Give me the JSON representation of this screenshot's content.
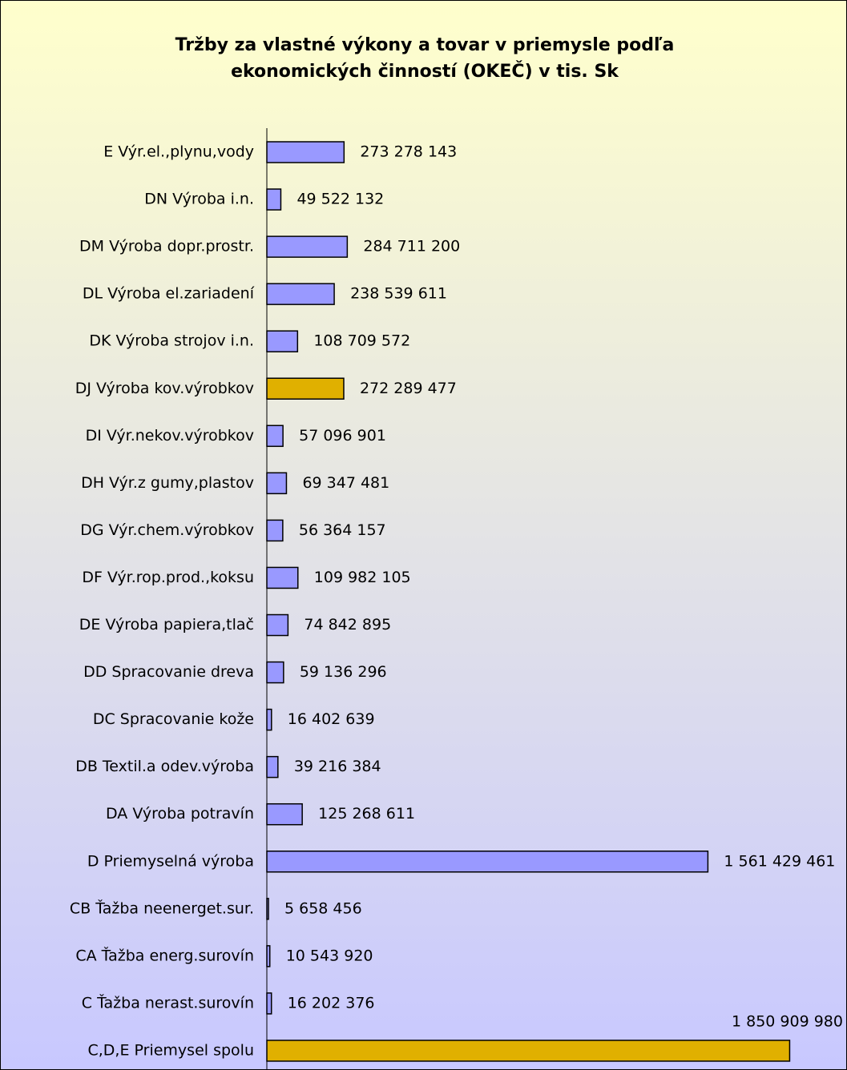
{
  "chart_data": {
    "type": "barh",
    "title": [
      "Tržby za vlastné výkony a tovar v priemysle podľa",
      "ekonomických činností (OKEČ) v tis. Sk"
    ],
    "categories": [
      "E Výr.el.,plynu,vody",
      "DN Výroba i.n.",
      "DM Výroba dopr.prostr.",
      "DL Výroba el.zariadení",
      "DK Výroba strojov i.n.",
      "DJ Výroba kov.výrobkov",
      "DI Výr.nekov.výrobkov",
      "DH Výr.z gumy,plastov",
      "DG Výr.chem.výrobkov",
      "DF Výr.rop.prod.,koksu",
      "DE Výroba papiera,tlač",
      "DD Spracovanie dreva",
      "DC Spracovanie kože",
      "DB Textil.a odev.výroba",
      "DA Výroba potravín",
      "D Priemyselná výroba",
      "CB Ťažba neenerget.sur.",
      "CA Ťažba energ.surovín",
      "C Ťažba nerast.surovín",
      "C,D,E Priemysel spolu"
    ],
    "values": [
      273278143,
      49522132,
      284711200,
      238539611,
      108709572,
      272289477,
      57096901,
      69347481,
      56364157,
      109982105,
      74842895,
      59136296,
      16402639,
      39216384,
      125268611,
      1561429461,
      5658456,
      10543920,
      16202376,
      1850909980
    ],
    "value_labels": [
      "273 278 143",
      "49 522 132",
      "284 711 200",
      "238 539 611",
      "108 709 572",
      "272 289 477",
      "57 096 901",
      "69 347 481",
      "56 364 157",
      "109 982 105",
      "74 842 895",
      "59 136 296",
      "16 402 639",
      "39 216 384",
      "125 268 611",
      "1 561 429 461",
      "5 658 456",
      "10 543 920",
      "16 202 376",
      "1 850 909 980"
    ],
    "colors": [
      "#9999ff",
      "#9999ff",
      "#9999ff",
      "#9999ff",
      "#9999ff",
      "#e0b000",
      "#9999ff",
      "#9999ff",
      "#9999ff",
      "#9999ff",
      "#9999ff",
      "#9999ff",
      "#9999ff",
      "#9999ff",
      "#9999ff",
      "#9999ff",
      "#9999ff",
      "#9999ff",
      "#9999ff",
      "#e0b000"
    ],
    "xlim": [
      0,
      2000000000
    ]
  }
}
